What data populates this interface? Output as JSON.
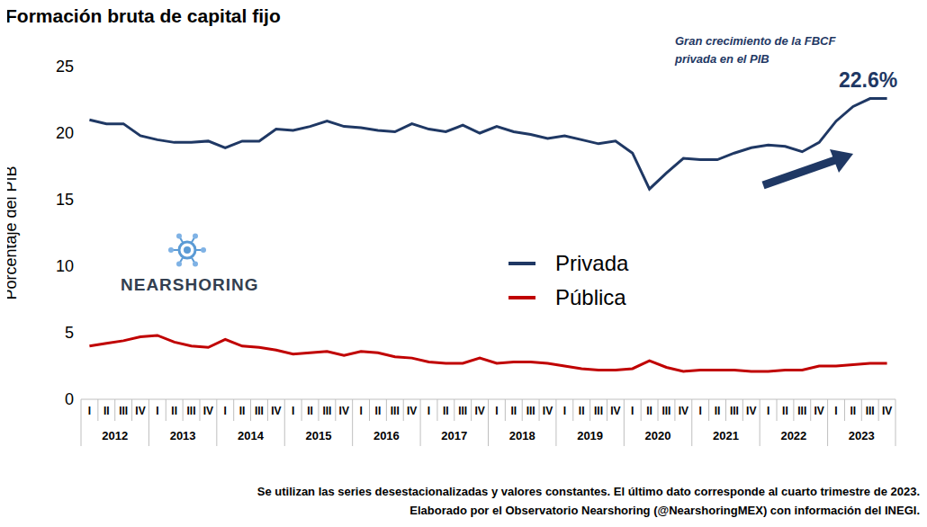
{
  "chart_data": {
    "type": "line",
    "title": "Formación bruta de capital fijo",
    "y_label": "Porcentaje del PIB",
    "annotations": [
      "Gran crecimiento de la FBCF privada en el PIB",
      "22.6%"
    ],
    "logo": "NEARSHORING",
    "footnotes": [
      "Se utilizan las series desestacionalizadas y valores constantes. El último dato corresponde al cuarto trimestre de 2023.",
      "Elaborado por el Observatorio Nearshoring (@NearshoringMEX) con información del INEGI."
    ],
    "categories": [
      "I",
      "II",
      "III",
      "IV",
      "I",
      "II",
      "III",
      "IV",
      "I",
      "II",
      "III",
      "IV",
      "I",
      "II",
      "III",
      "IV",
      "I",
      "II",
      "III",
      "IV",
      "I",
      "II",
      "III",
      "IV",
      "I",
      "II",
      "III",
      "IV",
      "I",
      "II",
      "III",
      "IV",
      "I",
      "II",
      "III",
      "IV",
      "I",
      "II",
      "III",
      "IV",
      "I",
      "II",
      "III",
      "IV",
      "I",
      "II",
      "III",
      "IV"
    ],
    "years": [
      "2012",
      "2013",
      "2014",
      "2015",
      "2016",
      "2017",
      "2018",
      "2019",
      "2020",
      "2021",
      "2022",
      "2023"
    ],
    "series": [
      {
        "name": "Privada",
        "color": "#1f3864",
        "values": [
          21.0,
          20.7,
          20.7,
          19.8,
          19.5,
          19.3,
          19.3,
          19.4,
          18.9,
          19.4,
          19.4,
          20.3,
          20.2,
          20.5,
          20.9,
          20.5,
          20.4,
          20.2,
          20.1,
          20.7,
          20.3,
          20.1,
          20.6,
          20.0,
          20.5,
          20.1,
          19.9,
          19.6,
          19.8,
          19.5,
          19.2,
          19.4,
          18.5,
          15.8,
          17.0,
          18.1,
          18.0,
          18.0,
          18.5,
          18.9,
          19.1,
          19.0,
          18.6,
          19.3,
          20.9,
          22.0,
          22.6,
          22.6
        ]
      },
      {
        "name": "Pública",
        "color": "#c00000",
        "values": [
          4.0,
          4.2,
          4.4,
          4.7,
          4.8,
          4.3,
          4.0,
          3.9,
          4.5,
          4.0,
          3.9,
          3.7,
          3.4,
          3.5,
          3.6,
          3.3,
          3.6,
          3.5,
          3.2,
          3.1,
          2.8,
          2.7,
          2.7,
          3.1,
          2.7,
          2.8,
          2.8,
          2.7,
          2.5,
          2.3,
          2.2,
          2.2,
          2.3,
          2.9,
          2.4,
          2.1,
          2.2,
          2.2,
          2.2,
          2.1,
          2.1,
          2.2,
          2.2,
          2.5,
          2.5,
          2.6,
          2.7,
          2.7
        ]
      }
    ],
    "ylim": [
      0,
      25
    ],
    "yticks": [
      0,
      5,
      10,
      15,
      20,
      25
    ],
    "grid": false,
    "legend": "center"
  }
}
